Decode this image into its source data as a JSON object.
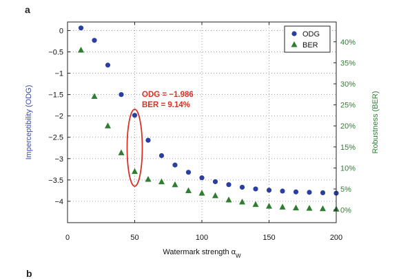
{
  "panel_labels": {
    "top": "a",
    "bottom": "b"
  },
  "colors": {
    "odg": "#2a3f9f",
    "ber": "#2e7d32",
    "annotation": "#d93025",
    "ylabel_left": "#3a4aa8",
    "ylabel_right": "#2e7d32",
    "grid": "#9a9a9a",
    "axis": "#222222"
  },
  "chart_data": {
    "type": "scatter",
    "xlabel": "Watermark strength α",
    "xlabel_sub": "W",
    "ylabel": "Imperceptibility (ODG)",
    "y2label": "Robustness (BER)",
    "xlim": [
      0,
      200
    ],
    "ylim": [
      -4.5,
      0.2
    ],
    "y2lim": [
      -0.03,
      0.447
    ],
    "xticks": [
      0,
      50,
      100,
      150,
      200
    ],
    "yticks": [
      0,
      -0.5,
      -1,
      -1.5,
      -2,
      -2.5,
      -3,
      -3.5,
      -4
    ],
    "ytick_labels": [
      "0",
      "−0.5",
      "−1",
      "−1.5",
      "−2",
      "−2.5",
      "−3",
      "−3.5",
      "−4"
    ],
    "y2ticks": [
      0,
      0.05,
      0.1,
      0.15,
      0.2,
      0.25,
      0.3,
      0.35,
      0.4
    ],
    "y2tick_labels": [
      "0%",
      "5%",
      "10%",
      "15%",
      "20%",
      "25%",
      "30%",
      "35%",
      "40%"
    ],
    "grid": true,
    "legend_position": "top-right",
    "series": [
      {
        "name": "ODG",
        "axis": "left",
        "marker": "circle",
        "x": [
          10,
          20,
          30,
          40,
          50,
          60,
          70,
          80,
          90,
          100,
          110,
          120,
          130,
          140,
          150,
          160,
          170,
          180,
          190,
          200
        ],
        "y": [
          0.06,
          -0.23,
          -0.81,
          -1.5,
          -1.986,
          -2.57,
          -2.93,
          -3.15,
          -3.32,
          -3.45,
          -3.54,
          -3.61,
          -3.67,
          -3.71,
          -3.74,
          -3.76,
          -3.78,
          -3.79,
          -3.8,
          -3.81
        ]
      },
      {
        "name": "BER",
        "axis": "right",
        "marker": "triangle",
        "x": [
          10,
          20,
          30,
          40,
          50,
          60,
          70,
          80,
          90,
          100,
          110,
          120,
          130,
          140,
          150,
          160,
          170,
          180,
          190,
          200
        ],
        "y": [
          0.38,
          0.27,
          0.2,
          0.136,
          0.0914,
          0.073,
          0.067,
          0.06,
          0.046,
          0.04,
          0.034,
          0.024,
          0.019,
          0.013,
          0.009,
          0.007,
          0.005,
          0.004,
          0.003,
          0.002
        ]
      }
    ],
    "annotation": {
      "lines": [
        "ODG = −1.986",
        "BER = 9.14%"
      ],
      "highlight_x": 50
    }
  }
}
